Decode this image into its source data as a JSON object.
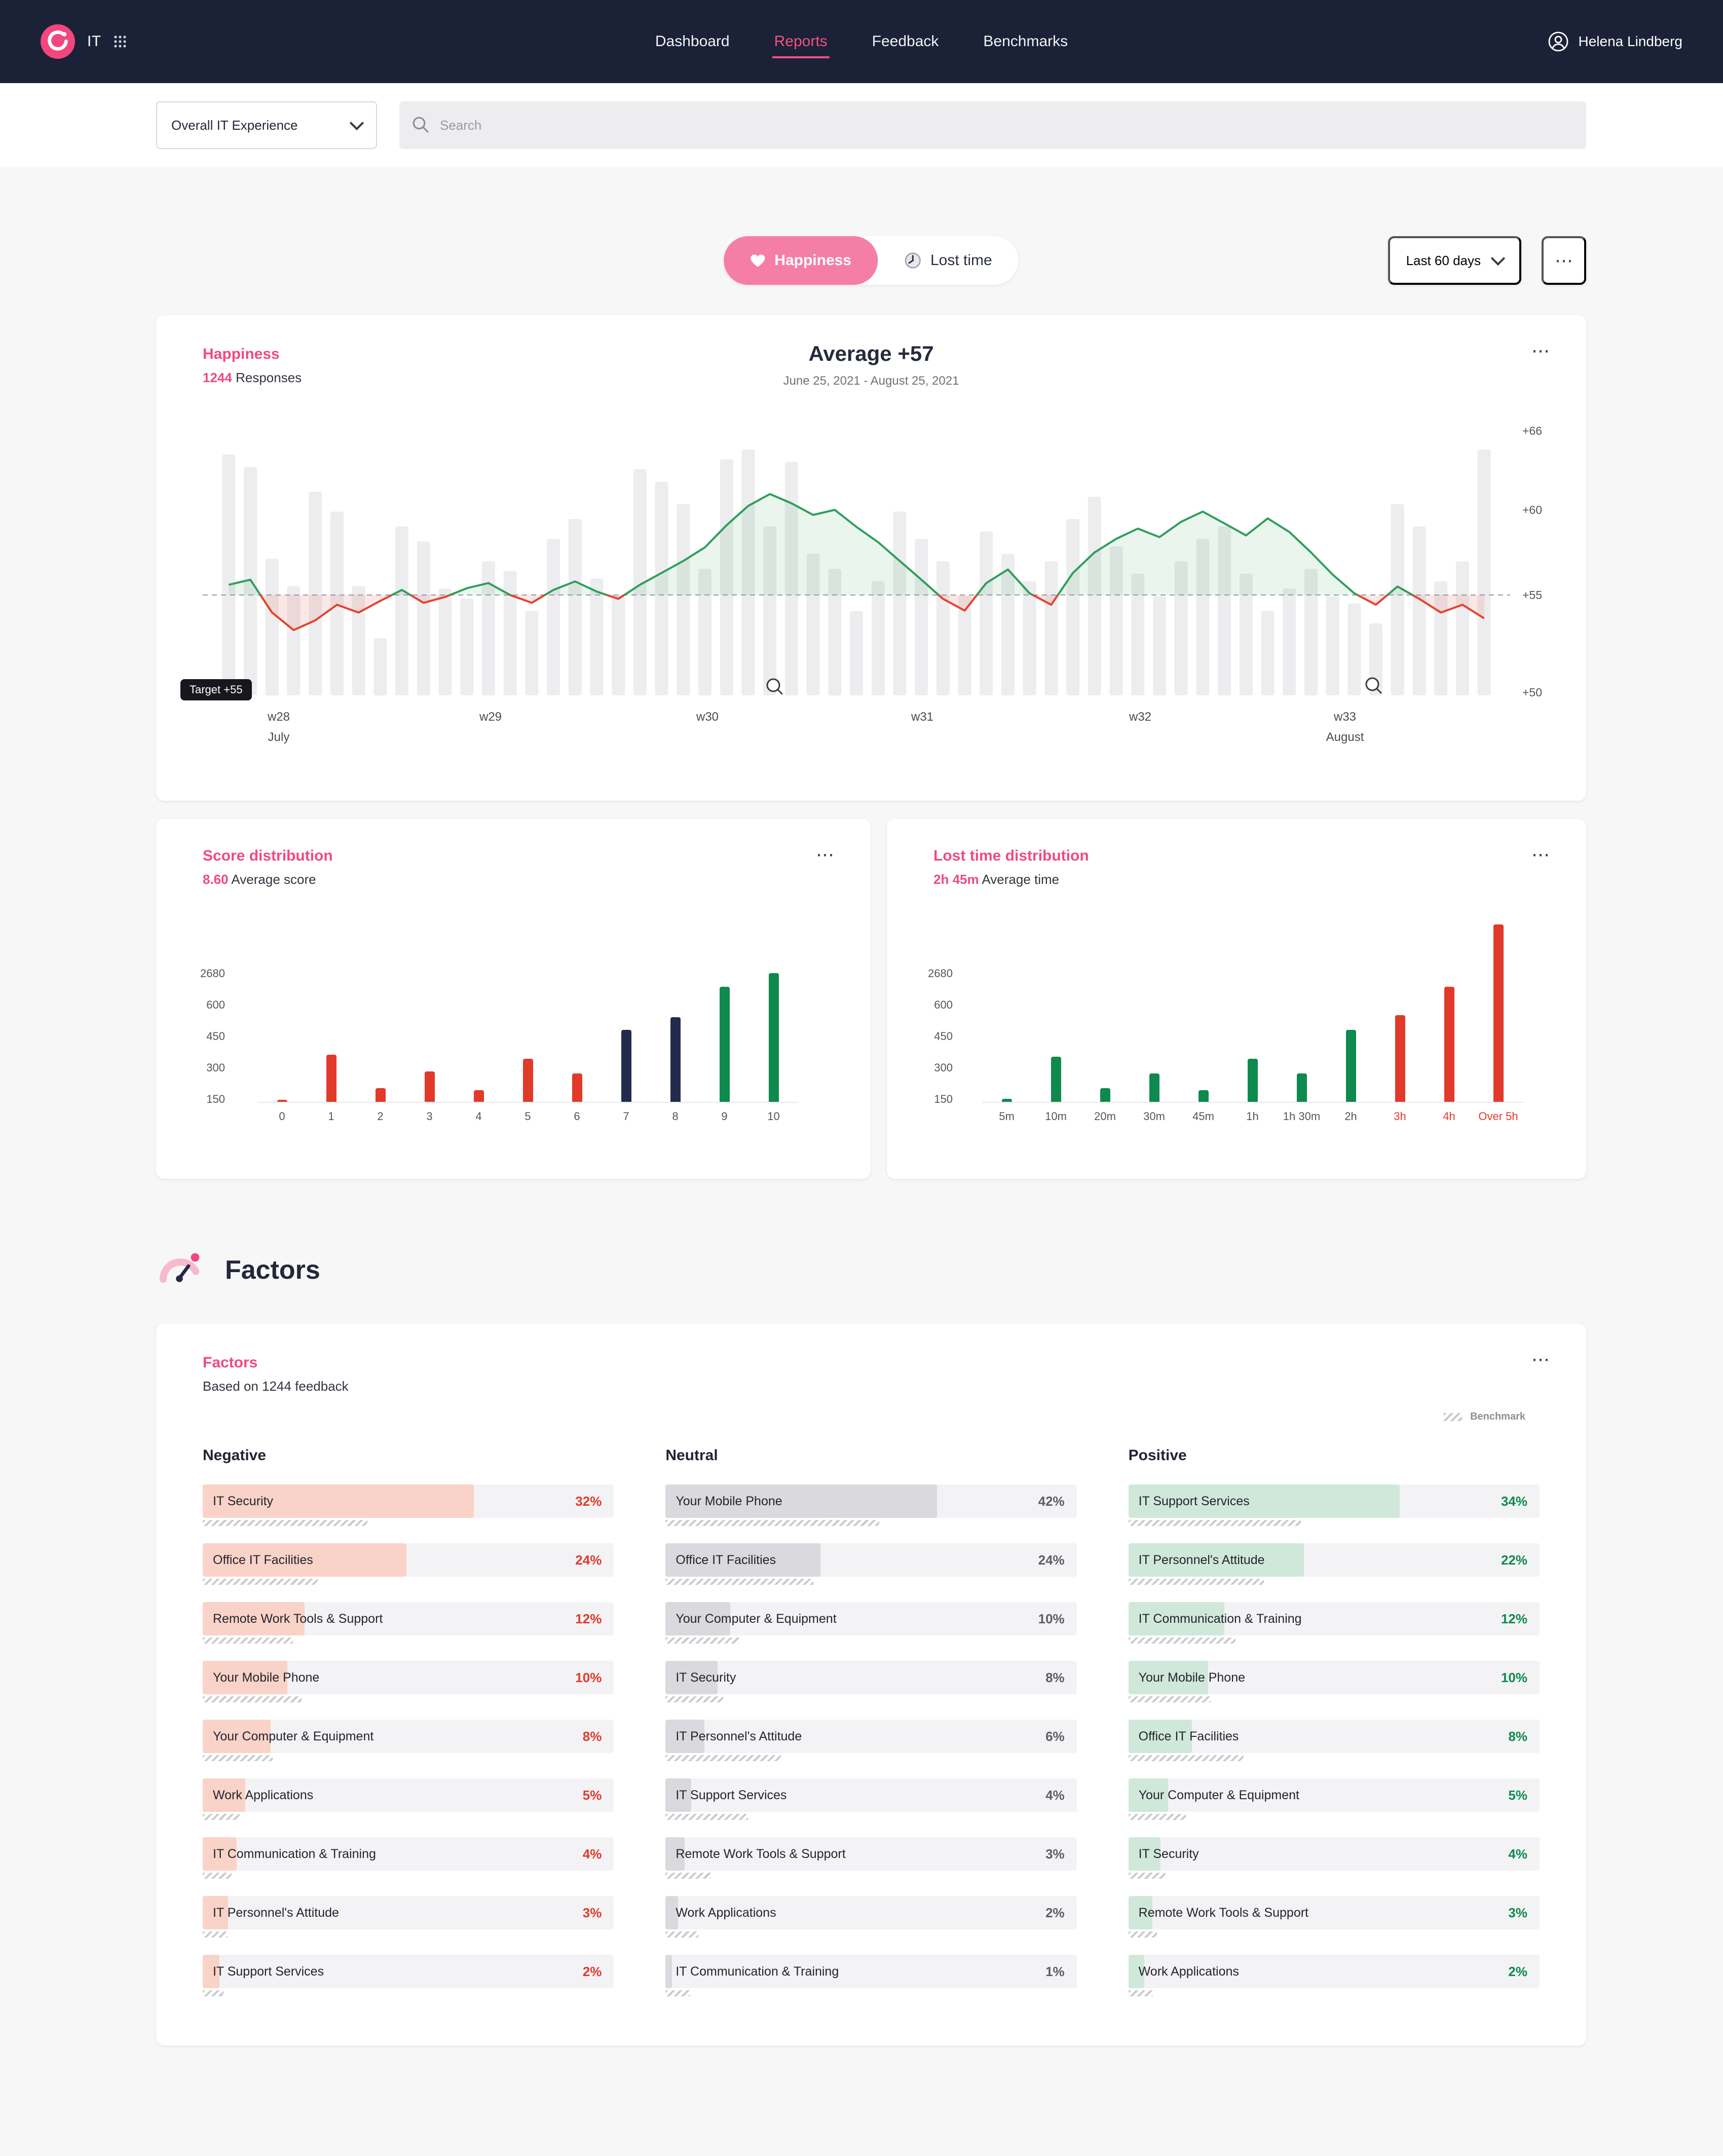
{
  "colors": {
    "accent_pink": "#ef4a80",
    "nav_bg": "#1b2137",
    "red": "#e13a2a",
    "green": "#0f8a4e",
    "navy": "#232b4d",
    "line_green": "#2f9e5c",
    "bar_gray": "#ededef"
  },
  "nav": {
    "brand": "IT",
    "links": [
      {
        "label": "Dashboard",
        "active": false
      },
      {
        "label": "Reports",
        "active": true
      },
      {
        "label": "Feedback",
        "active": false
      },
      {
        "label": "Benchmarks",
        "active": false
      }
    ],
    "user": "Helena Lindberg"
  },
  "filterbar": {
    "scope": "Overall IT Experience",
    "search_placeholder": "Search"
  },
  "controls": {
    "happiness_label": "Happiness",
    "lost_time_label": "Lost time",
    "range_label": "Last 60 days"
  },
  "happiness_card": {
    "title": "Happiness",
    "responses": "1244",
    "responses_label": "Responses",
    "average_title": "Average +57",
    "date_range": "June 25, 2021 - August 25, 2021",
    "target_label": "Target +55"
  },
  "chart_data": [
    {
      "type": "line",
      "title": "Happiness trend",
      "subtitle": "Average +57, June 25, 2021 - August 25, 2021",
      "target": 55,
      "ylim": [
        50,
        66
      ],
      "yticks": [
        {
          "label": "+66",
          "value": 66,
          "y": 20
        },
        {
          "label": "+60",
          "value": 60,
          "y": 98
        },
        {
          "label": "+55",
          "value": 55,
          "y": 182
        },
        {
          "label": "+50",
          "value": 50,
          "y": 278
        }
      ],
      "weeks": [
        {
          "label": "w28",
          "x": 0.058,
          "sub": "July"
        },
        {
          "label": "w29",
          "x": 0.22,
          "sub": ""
        },
        {
          "label": "w30",
          "x": 0.386,
          "sub": ""
        },
        {
          "label": "w31",
          "x": 0.55,
          "sub": ""
        },
        {
          "label": "w32",
          "x": 0.717,
          "sub": ""
        },
        {
          "label": "w33",
          "x": 0.874,
          "sub": "August"
        }
      ],
      "line": [
        55.6,
        55.9,
        54.1,
        53.2,
        53.7,
        54.5,
        54.1,
        54.7,
        55.3,
        54.6,
        54.9,
        55.4,
        55.7,
        55.0,
        54.6,
        55.3,
        55.8,
        55.2,
        54.8,
        55.6,
        56.3,
        57.0,
        57.8,
        59.1,
        60.3,
        61.2,
        60.5,
        59.7,
        60.0,
        59.0,
        58.1,
        57.0,
        55.9,
        54.8,
        54.2,
        55.7,
        56.5,
        55.1,
        54.5,
        56.3,
        57.5,
        58.3,
        58.9,
        58.4,
        59.3,
        59.9,
        59.2,
        58.5,
        59.5,
        58.7,
        57.5,
        56.2,
        55.1,
        54.5,
        55.5,
        54.8,
        54.1,
        54.5,
        53.8
      ],
      "response_bars_relative": [
        97,
        92,
        55,
        44,
        82,
        74,
        44,
        23,
        68,
        62,
        43,
        39,
        54,
        50,
        34,
        63,
        71,
        47,
        40,
        91,
        86,
        77,
        51,
        95,
        99,
        68,
        94,
        57,
        51,
        34,
        46,
        74,
        63,
        54,
        40,
        66,
        57,
        46,
        54,
        71,
        80,
        60,
        49,
        40,
        54,
        63,
        68,
        49,
        34,
        43,
        51,
        40,
        37,
        29,
        77,
        68,
        46,
        54,
        99
      ]
    },
    {
      "type": "bar",
      "title": "Score distribution",
      "average_value": "8.60",
      "average_label": "Average score",
      "categories": [
        "0",
        "1",
        "2",
        "3",
        "4",
        "5",
        "6",
        "7",
        "8",
        "9",
        "10"
      ],
      "values": [
        20,
        360,
        200,
        280,
        190,
        340,
        270,
        480,
        540,
        1780,
        2680
      ],
      "ticks": [
        150,
        300,
        450,
        600,
        2680
      ],
      "colors": [
        "#e13a2a",
        "#e13a2a",
        "#e13a2a",
        "#e13a2a",
        "#e13a2a",
        "#e13a2a",
        "#e13a2a",
        "#232b4d",
        "#232b4d",
        "#0f8a4e",
        "#0f8a4e"
      ],
      "red_label_indexes": []
    },
    {
      "type": "bar",
      "title": "Lost time distribution",
      "average_value": "2h 45m",
      "average_label": "Average time",
      "categories": [
        "5m",
        "10m",
        "20m",
        "30m",
        "45m",
        "1h",
        "1h 30m",
        "2h",
        "3h",
        "4h",
        "Over 5h"
      ],
      "values": [
        150,
        350,
        200,
        270,
        190,
        340,
        270,
        480,
        550,
        1780,
        5900
      ],
      "ticks": [
        150,
        300,
        450,
        600,
        2680
      ],
      "colors": [
        "#0f8a4e",
        "#0f8a4e",
        "#0f8a4e",
        "#0f8a4e",
        "#0f8a4e",
        "#0f8a4e",
        "#0f8a4e",
        "#0f8a4e",
        "#e13a2a",
        "#e13a2a",
        "#e13a2a"
      ],
      "red_label_indexes": [
        8,
        9,
        10
      ]
    }
  ],
  "factors_section": {
    "heading": "Factors"
  },
  "factors": {
    "title": "Factors",
    "subtitle": "Based on 1244 feedback",
    "benchmark_label": "Benchmark",
    "groups": [
      {
        "key": "negative",
        "title": "Negative",
        "fill": "#f9d3c7",
        "pct_color": "#e2392b",
        "items": [
          {
            "label": "IT Security",
            "value": 32,
            "benchmark": 0.4
          },
          {
            "label": "Office IT Facilities",
            "value": 24,
            "benchmark": 0.28
          },
          {
            "label": "Remote Work Tools & Support",
            "value": 12,
            "benchmark": 0.22
          },
          {
            "label": "Your Mobile Phone",
            "value": 10,
            "benchmark": 0.24
          },
          {
            "label": "Your Computer & Equipment",
            "value": 8,
            "benchmark": 0.17
          },
          {
            "label": "Work Applications",
            "value": 5,
            "benchmark": 0.09
          },
          {
            "label": "IT Communication & Training",
            "value": 4,
            "benchmark": 0.07
          },
          {
            "label": "IT Personnel's Attitude",
            "value": 3,
            "benchmark": 0.06
          },
          {
            "label": "IT Support Services",
            "value": 2,
            "benchmark": 0.05
          }
        ]
      },
      {
        "key": "neutral",
        "title": "Neutral",
        "fill": "#d9d9de",
        "pct_color": "#5e5e66",
        "items": [
          {
            "label": "Your Mobile Phone",
            "value": 42,
            "benchmark": 0.52
          },
          {
            "label": "Office IT Facilities",
            "value": 24,
            "benchmark": 0.36
          },
          {
            "label": "Your Computer & Equipment",
            "value": 10,
            "benchmark": 0.18
          },
          {
            "label": "IT Security",
            "value": 8,
            "benchmark": 0.14
          },
          {
            "label": "IT Personnel's Attitude",
            "value": 6,
            "benchmark": 0.28
          },
          {
            "label": "IT Support Services",
            "value": 4,
            "benchmark": 0.2
          },
          {
            "label": "Remote Work Tools & Support",
            "value": 3,
            "benchmark": 0.11
          },
          {
            "label": "Work Applications",
            "value": 2,
            "benchmark": 0.08
          },
          {
            "label": "IT Communication & Training",
            "value": 1,
            "benchmark": 0.06
          }
        ]
      },
      {
        "key": "positive",
        "title": "Positive",
        "fill": "#cfe8da",
        "pct_color": "#0f8a4e",
        "items": [
          {
            "label": "IT Support Services",
            "value": 34,
            "benchmark": 0.42
          },
          {
            "label": "IT Personnel's Attitude",
            "value": 22,
            "benchmark": 0.33
          },
          {
            "label": "IT Communication & Training",
            "value": 12,
            "benchmark": 0.26
          },
          {
            "label": "Your Mobile Phone",
            "value": 10,
            "benchmark": 0.2
          },
          {
            "label": "Office IT Facilities",
            "value": 8,
            "benchmark": 0.28
          },
          {
            "label": "Your Computer & Equipment",
            "value": 5,
            "benchmark": 0.14
          },
          {
            "label": "IT Security",
            "value": 4,
            "benchmark": 0.09
          },
          {
            "label": "Remote Work Tools & Support",
            "value": 3,
            "benchmark": 0.07
          },
          {
            "label": "Work Applications",
            "value": 2,
            "benchmark": 0.06
          }
        ]
      }
    ]
  }
}
